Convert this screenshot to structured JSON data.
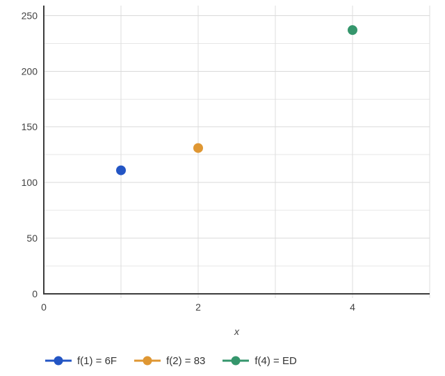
{
  "chart_data": {
    "type": "scatter",
    "xlabel": "x",
    "ylabel": "",
    "xlim": [
      0,
      5
    ],
    "ylim": [
      0,
      259
    ],
    "x_ticks": [
      0,
      2,
      4
    ],
    "y_ticks": [
      0,
      50,
      100,
      150,
      200,
      250
    ],
    "x_grid_step": 1,
    "y_minor_step": 25,
    "grid": true,
    "legend_position": "bottom",
    "series": [
      {
        "name": "f(1) = 6F",
        "color": "#2355C4",
        "points": [
          {
            "x": 1,
            "y": 111
          }
        ]
      },
      {
        "name": "f(2) = 83",
        "color": "#DF9733",
        "points": [
          {
            "x": 2,
            "y": 131
          }
        ]
      },
      {
        "name": "f(4) = ED",
        "color": "#35966C",
        "points": [
          {
            "x": 4,
            "y": 237
          }
        ]
      }
    ]
  },
  "colors": {
    "axis": "#3C3C3C",
    "major_gridline": "#D9D9D9",
    "minor_gridline": "#E7E7E7",
    "vertical_gridline": "#DCDCDC",
    "tick_label": "#424242",
    "legend_text": "#333333",
    "background": "#FFFFFF"
  }
}
